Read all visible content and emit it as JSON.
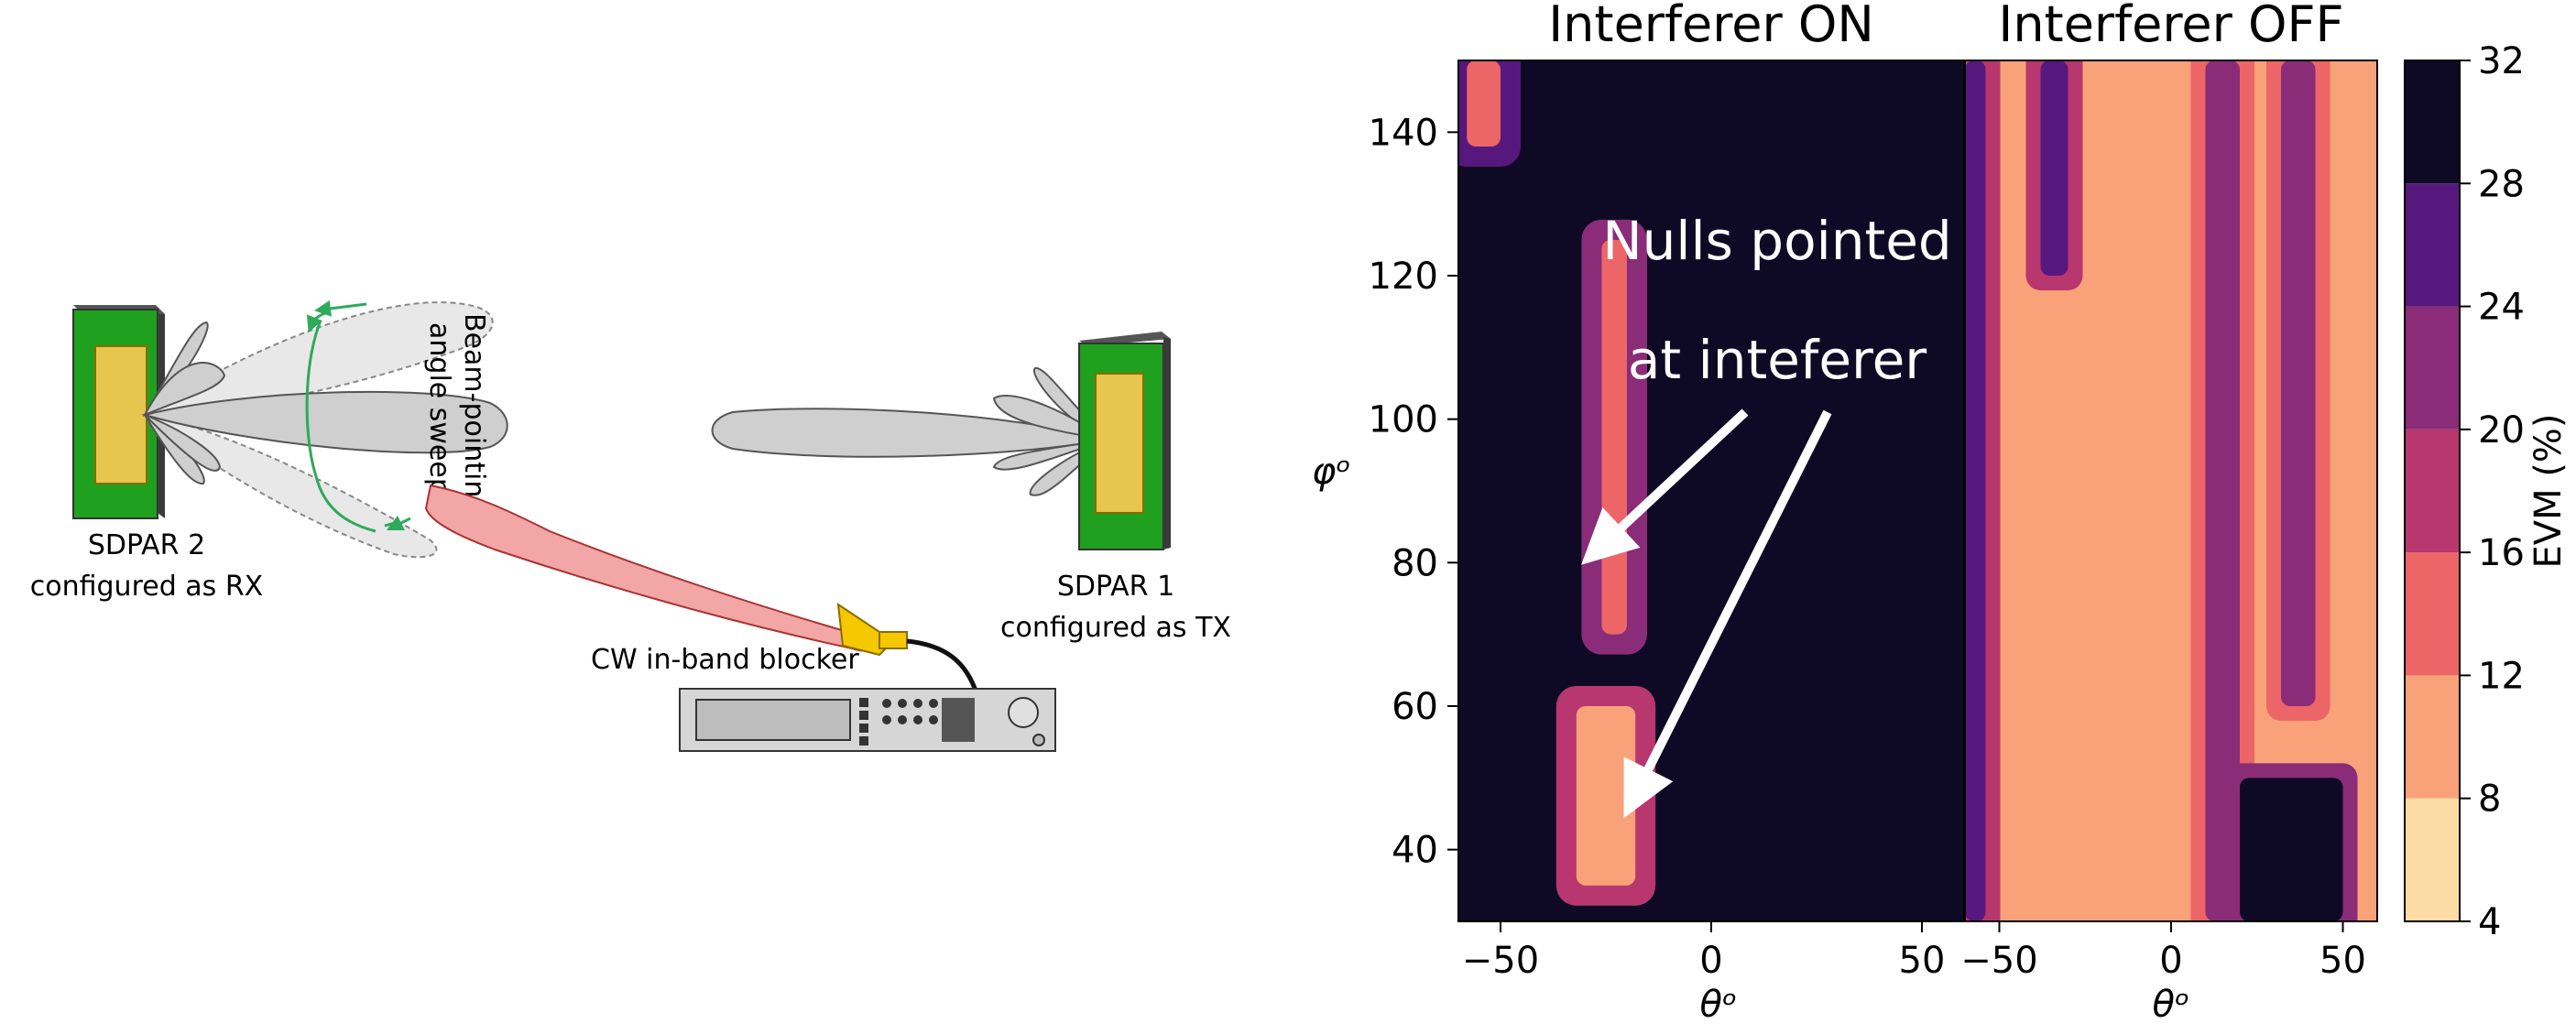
{
  "diagram": {
    "rx_label": [
      "SDPAR 2",
      "configured as RX"
    ],
    "tx_label": [
      "SDPAR 1",
      "configured as TX"
    ],
    "sweep_label": [
      "Beam-pointing",
      "angle sweep"
    ],
    "blocker_label": "CW in-band blocker"
  },
  "chart_data": {
    "type": "heatmap",
    "panels": [
      {
        "title": "Interferer ON",
        "xlabel": "θᵒ",
        "ylabel": "φᵒ",
        "xlim": [
          -60,
          60
        ],
        "ylim": [
          30,
          150
        ],
        "xticks": [
          -50,
          0,
          50
        ],
        "yticks": [
          40,
          60,
          80,
          100,
          120,
          140
        ],
        "background_evm_pct": 30,
        "low_evm_regions": [
          {
            "theta": [
              -26,
              -20
            ],
            "phi": [
              70,
              125
            ],
            "evm_pct": 12
          },
          {
            "theta": [
              -32,
              -18
            ],
            "phi": [
              35,
              60
            ],
            "evm_pct": 8
          },
          {
            "theta": [
              -58,
              -50
            ],
            "phi": [
              138,
              150
            ],
            "evm_pct": 14
          }
        ],
        "annotation": {
          "lines": [
            "Nulls pointed",
            "at inteferer"
          ],
          "arrow_targets": [
            {
              "theta": -30,
              "phi": 80
            },
            {
              "theta": -20,
              "phi": 45
            }
          ]
        }
      },
      {
        "title": "Interferer OFF",
        "xlabel": "θᵒ",
        "xlim": [
          -60,
          60
        ],
        "ylim": [
          30,
          150
        ],
        "xticks": [
          -50,
          0,
          50
        ],
        "background_evm_pct": 8,
        "high_evm_regions": [
          {
            "theta": [
              -60,
              -54
            ],
            "phi": [
              30,
              150
            ],
            "evm_pct": 24
          },
          {
            "theta": [
              -38,
              -30
            ],
            "phi": [
              120,
              150
            ],
            "evm_pct": 26
          },
          {
            "theta": [
              10,
              20
            ],
            "phi": [
              30,
              150
            ],
            "evm_pct": 22
          },
          {
            "theta": [
              20,
              50
            ],
            "phi": [
              30,
              50
            ],
            "evm_pct": 28
          },
          {
            "theta": [
              32,
              42
            ],
            "phi": [
              60,
              150
            ],
            "evm_pct": 20
          }
        ]
      }
    ],
    "colorbar": {
      "label": "EVM (%)",
      "ticks": [
        4,
        8,
        12,
        16,
        20,
        24,
        28,
        32
      ],
      "levels": [
        4,
        8,
        12,
        16,
        20,
        24,
        28,
        32
      ],
      "colors": [
        "#fcdca5",
        "#f9a27a",
        "#ec6567",
        "#b7376e",
        "#8a2c77",
        "#57187d",
        "#0e0a25"
      ]
    }
  }
}
